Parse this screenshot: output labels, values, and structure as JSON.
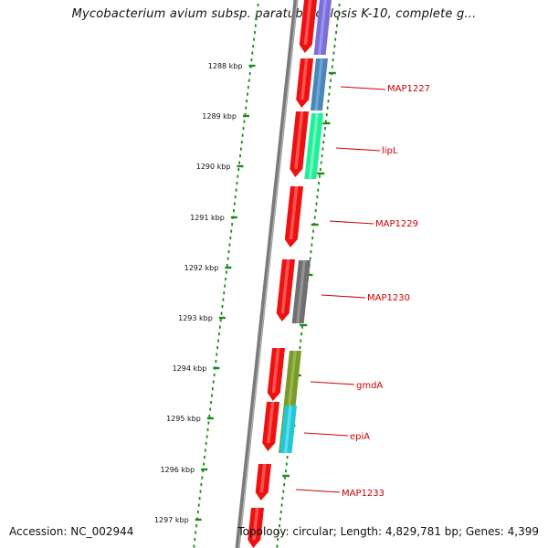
{
  "title": "Mycobacterium avium subsp. paratuberculosis K-10, complete g...",
  "footer": {
    "accession": "Accession: NC_002944",
    "summary": "Topology: circular; Length: 4,829,781 bp; Genes: 4,399"
  },
  "ticks": [
    "1288 kbp",
    "1289 kbp",
    "1290 kbp",
    "1291 kbp",
    "1292 kbp",
    "1293 kbp",
    "1294 kbp",
    "1295 kbp",
    "1296 kbp",
    "1297 kbp"
  ],
  "gene_labels": [
    "MAP1227",
    "lipL",
    "MAP1229",
    "MAP1230",
    "gmdA",
    "epiA",
    "MAP1233"
  ],
  "colors": {
    "backbone": "#7a7a7a",
    "dots": "#1a8a1a",
    "gene_red": "#ee1111",
    "label_red": "#cc0000",
    "cog_purple": "#7a6fd8",
    "cog_steelblue": "#4a86b8",
    "cog_green": "#22ee9a",
    "cog_gray": "#6f6f6f",
    "cog_olive": "#7a9a2a",
    "cog_cyan": "#22c8d8"
  }
}
